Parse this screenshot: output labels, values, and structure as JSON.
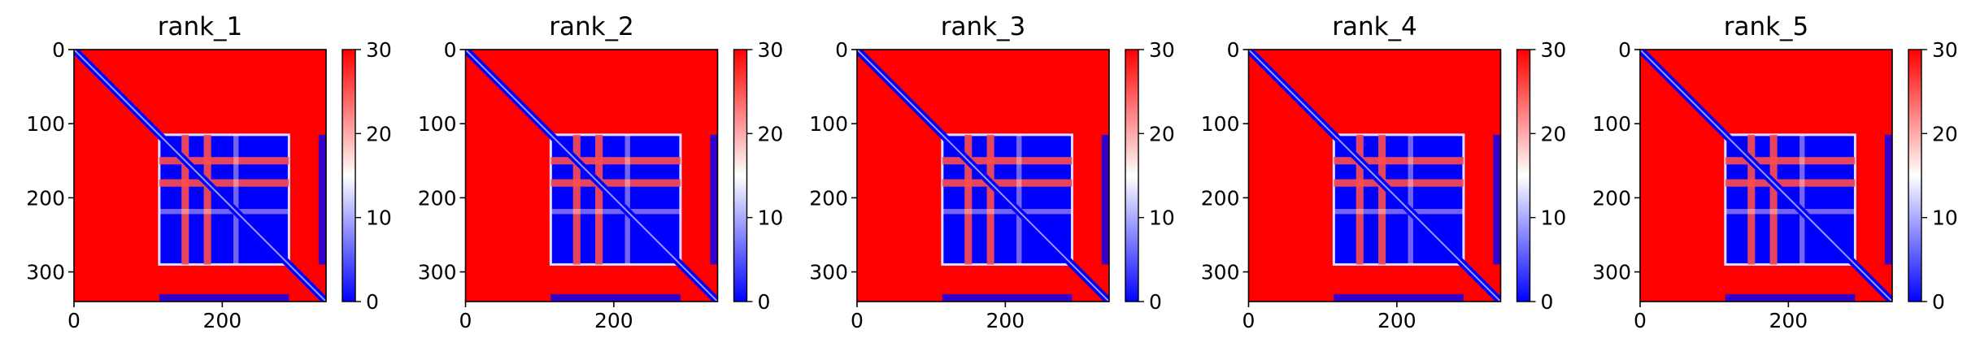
{
  "chart_data": [
    {
      "type": "heatmap",
      "title": "rank_1",
      "x_ticks": [
        "0",
        "200"
      ],
      "x_tick_values": [
        0,
        200
      ],
      "y_ticks": [
        "0",
        "100",
        "200",
        "300"
      ],
      "y_tick_values": [
        0,
        100,
        200,
        300
      ],
      "xlim": [
        0,
        340
      ],
      "ylim": [
        340,
        0
      ],
      "colorbar": {
        "colormap": "bwr",
        "range": [
          0,
          30
        ],
        "ticks": [
          "0",
          "10",
          "20",
          "30"
        ],
        "tick_values": [
          0,
          10,
          20,
          30
        ]
      },
      "structure": {
        "matrix_size": 340,
        "background_value": 30,
        "diagonal_value": 0,
        "low_block_residues": [
          115,
          290
        ],
        "gap_residues": [
          [
            145,
            155
          ],
          [
            175,
            185
          ],
          [
            215,
            222
          ],
          [
            290,
            330
          ]
        ],
        "isolated_low_strip": [
          330,
          340
        ]
      }
    },
    {
      "type": "heatmap",
      "title": "rank_2",
      "x_ticks": [
        "0",
        "200"
      ],
      "x_tick_values": [
        0,
        200
      ],
      "y_ticks": [
        "0",
        "100",
        "200",
        "300"
      ],
      "y_tick_values": [
        0,
        100,
        200,
        300
      ],
      "xlim": [
        0,
        340
      ],
      "ylim": [
        340,
        0
      ],
      "colorbar": {
        "colormap": "bwr",
        "range": [
          0,
          30
        ],
        "ticks": [
          "0",
          "10",
          "20",
          "30"
        ],
        "tick_values": [
          0,
          10,
          20,
          30
        ]
      },
      "structure": {
        "matrix_size": 340,
        "background_value": 30,
        "diagonal_value": 0,
        "low_block_residues": [
          115,
          290
        ],
        "gap_residues": [
          [
            145,
            155
          ],
          [
            175,
            185
          ],
          [
            215,
            222
          ],
          [
            290,
            330
          ]
        ],
        "isolated_low_strip": [
          330,
          340
        ]
      }
    },
    {
      "type": "heatmap",
      "title": "rank_3",
      "x_ticks": [
        "0",
        "200"
      ],
      "x_tick_values": [
        0,
        200
      ],
      "y_ticks": [
        "0",
        "100",
        "200",
        "300"
      ],
      "y_tick_values": [
        0,
        100,
        200,
        300
      ],
      "xlim": [
        0,
        340
      ],
      "ylim": [
        340,
        0
      ],
      "colorbar": {
        "colormap": "bwr",
        "range": [
          0,
          30
        ],
        "ticks": [
          "0",
          "10",
          "20",
          "30"
        ],
        "tick_values": [
          0,
          10,
          20,
          30
        ]
      },
      "structure": {
        "matrix_size": 340,
        "background_value": 30,
        "diagonal_value": 0,
        "low_block_residues": [
          115,
          290
        ],
        "gap_residues": [
          [
            145,
            155
          ],
          [
            175,
            185
          ],
          [
            215,
            222
          ],
          [
            290,
            330
          ]
        ],
        "isolated_low_strip": [
          330,
          340
        ]
      }
    },
    {
      "type": "heatmap",
      "title": "rank_4",
      "x_ticks": [
        "0",
        "200"
      ],
      "x_tick_values": [
        0,
        200
      ],
      "y_ticks": [
        "0",
        "100",
        "200",
        "300"
      ],
      "y_tick_values": [
        0,
        100,
        200,
        300
      ],
      "xlim": [
        0,
        340
      ],
      "ylim": [
        340,
        0
      ],
      "colorbar": {
        "colormap": "bwr",
        "range": [
          0,
          30
        ],
        "ticks": [
          "0",
          "10",
          "20",
          "30"
        ],
        "tick_values": [
          0,
          10,
          20,
          30
        ]
      },
      "structure": {
        "matrix_size": 340,
        "background_value": 30,
        "diagonal_value": 0,
        "low_block_residues": [
          115,
          290
        ],
        "gap_residues": [
          [
            145,
            155
          ],
          [
            175,
            185
          ],
          [
            215,
            222
          ],
          [
            290,
            330
          ]
        ],
        "isolated_low_strip": [
          330,
          340
        ]
      }
    },
    {
      "type": "heatmap",
      "title": "rank_5",
      "x_ticks": [
        "0",
        "200"
      ],
      "x_tick_values": [
        0,
        200
      ],
      "y_ticks": [
        "0",
        "100",
        "200",
        "300"
      ],
      "y_tick_values": [
        0,
        100,
        200,
        300
      ],
      "xlim": [
        0,
        340
      ],
      "ylim": [
        340,
        0
      ],
      "colorbar": {
        "colormap": "bwr",
        "range": [
          0,
          30
        ],
        "ticks": [
          "0",
          "10",
          "20",
          "30"
        ],
        "tick_values": [
          0,
          10,
          20,
          30
        ]
      },
      "structure": {
        "matrix_size": 340,
        "background_value": 30,
        "diagonal_value": 0,
        "low_block_residues": [
          115,
          290
        ],
        "gap_residues": [
          [
            145,
            155
          ],
          [
            175,
            185
          ],
          [
            215,
            222
          ],
          [
            290,
            330
          ]
        ],
        "isolated_low_strip": [
          330,
          340
        ]
      }
    }
  ],
  "colors": {
    "low": "#0000ff",
    "mid": "#ffffff",
    "high": "#ff0000",
    "axis": "#000000"
  }
}
